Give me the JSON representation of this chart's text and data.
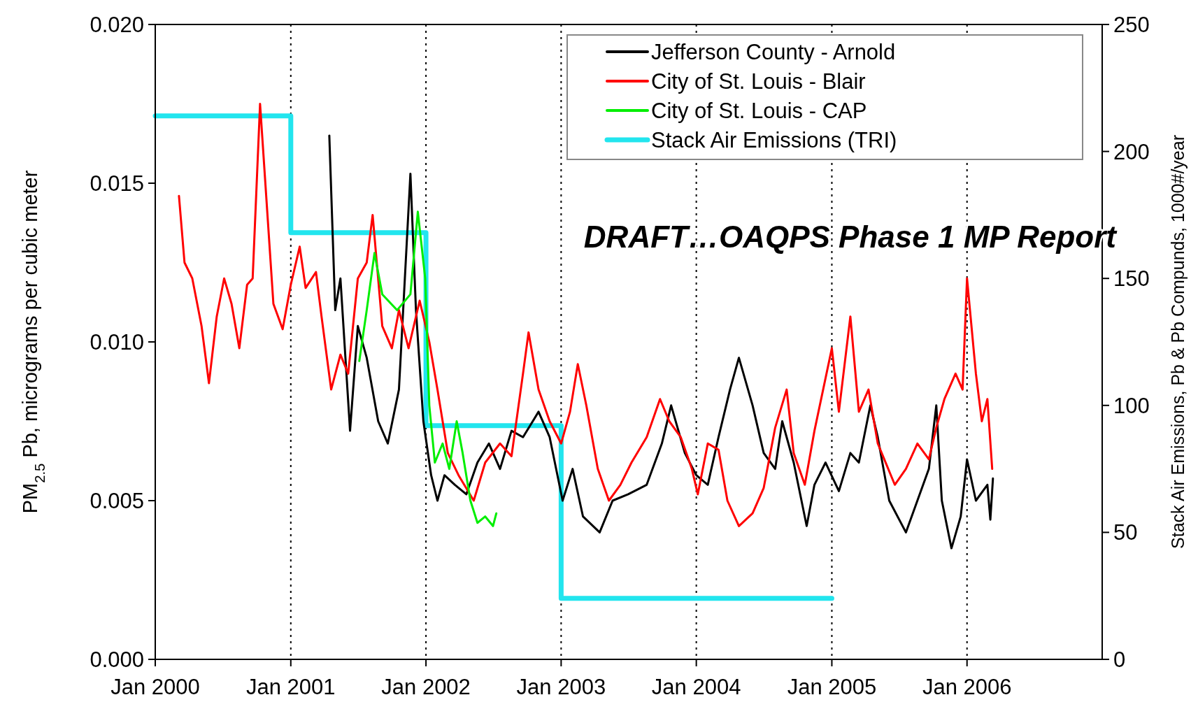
{
  "chart_data": {
    "type": "line",
    "ylabel": "PM$_{2.5}$ Pb, micrograms per cubic meter",
    "y2label": "Stack Air Emissions, Pb & Pb Compunds, 1000#/year",
    "annotations": [
      "DRAFT…OAQPS Phase 1 MP Report"
    ],
    "xlim": [
      "2000-01",
      "2007-01"
    ],
    "xticks": [
      {
        "value": "2000-01",
        "label": "Jan 2000"
      },
      {
        "value": "2001-01",
        "label": "Jan 2001"
      },
      {
        "value": "2002-01",
        "label": "Jan 2002"
      },
      {
        "value": "2003-01",
        "label": "Jan 2003"
      },
      {
        "value": "2004-01",
        "label": "Jan 2004"
      },
      {
        "value": "2005-01",
        "label": "Jan 2005"
      },
      {
        "value": "2006-01",
        "label": "Jan 2006"
      }
    ],
    "ylim": [
      0,
      0.02
    ],
    "yticks": [
      {
        "value": 0,
        "label": "0.000"
      },
      {
        "value": 0.005,
        "label": "0.005"
      },
      {
        "value": 0.01,
        "label": "0.010"
      },
      {
        "value": 0.015,
        "label": "0.015"
      },
      {
        "value": 0.02,
        "label": "0.020"
      }
    ],
    "y2lim": [
      0,
      250
    ],
    "y2ticks": [
      0,
      50,
      100,
      150,
      200,
      250
    ],
    "grid": "x",
    "line_style": "solid",
    "legend": "top right",
    "series": [
      {
        "name": "Jefferson County - Arnold",
        "color": "#000000",
        "x": [
          "2001-04-15",
          "2001-05-01",
          "2001-05-15",
          "2001-06-10",
          "2001-07-01",
          "2001-07-25",
          "2001-08-25",
          "2001-09-20",
          "2001-10-20",
          "2001-11-05",
          "2001-11-20",
          "2001-12-05",
          "2001-12-25",
          "2002-01-15",
          "2002-02-01",
          "2002-02-20",
          "2002-03-20",
          "2002-04-20",
          "2002-05-20",
          "2002-06-20",
          "2002-07-20",
          "2002-08-20",
          "2002-09-20",
          "2002-11-01",
          "2002-12-01",
          "2003-01-05",
          "2003-02-01",
          "2003-03-01",
          "2003-04-15",
          "2003-05-20",
          "2003-07-01",
          "2003-08-20",
          "2003-09-30",
          "2003-10-25",
          "2003-12-01",
          "2004-01-01",
          "2004-02-01",
          "2004-03-01",
          "2004-04-01",
          "2004-04-25",
          "2004-06-01",
          "2004-07-01",
          "2004-08-01",
          "2004-08-20",
          "2004-09-20",
          "2004-10-25",
          "2004-11-15",
          "2004-12-15",
          "2005-01-20",
          "2005-02-20",
          "2005-03-15",
          "2005-04-15",
          "2005-05-05",
          "2005-06-05",
          "2005-07-20",
          "2005-08-20",
          "2005-09-20",
          "2005-10-10",
          "2005-10-25",
          "2005-11-20",
          "2005-12-15",
          "2006-01-01",
          "2006-01-25",
          "2006-02-25",
          "2006-03-05",
          "2006-03-12"
        ],
        "values": [
          0.0165,
          0.011,
          0.012,
          0.0072,
          0.0105,
          0.0095,
          0.0075,
          0.0068,
          0.0085,
          0.012,
          0.0153,
          0.011,
          0.0075,
          0.0058,
          0.005,
          0.0058,
          0.0055,
          0.0052,
          0.0062,
          0.0068,
          0.006,
          0.0072,
          0.007,
          0.0078,
          0.007,
          0.005,
          0.006,
          0.0045,
          0.004,
          0.005,
          0.0052,
          0.0055,
          0.0068,
          0.008,
          0.0065,
          0.0058,
          0.0055,
          0.007,
          0.0085,
          0.0095,
          0.008,
          0.0065,
          0.006,
          0.0075,
          0.0062,
          0.0042,
          0.0055,
          0.0062,
          0.0053,
          0.0065,
          0.0062,
          0.008,
          0.007,
          0.005,
          0.004,
          0.005,
          0.006,
          0.008,
          0.005,
          0.0035,
          0.0045,
          0.0063,
          0.005,
          0.0055,
          0.0044,
          0.0057
        ]
      },
      {
        "name": "City of St. Louis - Blair",
        "color": "#ff0000",
        "x": [
          "2000-03-05",
          "2000-03-20",
          "2000-04-10",
          "2000-05-05",
          "2000-05-25",
          "2000-06-15",
          "2000-07-05",
          "2000-07-25",
          "2000-08-15",
          "2000-09-05",
          "2000-09-20",
          "2000-10-10",
          "2000-10-30",
          "2000-11-15",
          "2000-12-10",
          "2001-01-01",
          "2001-01-25",
          "2001-02-10",
          "2001-03-10",
          "2001-03-25",
          "2001-04-20",
          "2001-05-15",
          "2001-06-05",
          "2001-07-01",
          "2001-07-25",
          "2001-08-10",
          "2001-09-05",
          "2001-10-01",
          "2001-10-20",
          "2001-11-15",
          "2001-12-15",
          "2002-01-10",
          "2002-02-01",
          "2002-03-01",
          "2002-03-30",
          "2002-05-10",
          "2002-06-10",
          "2002-07-20",
          "2002-08-20",
          "2002-09-20",
          "2002-10-05",
          "2002-11-01",
          "2002-12-01",
          "2003-01-01",
          "2003-01-25",
          "2003-02-15",
          "2003-03-10",
          "2003-04-10",
          "2003-05-10",
          "2003-06-10",
          "2003-07-10",
          "2003-08-20",
          "2003-09-25",
          "2003-10-20",
          "2003-11-20",
          "2003-12-20",
          "2004-01-05",
          "2004-02-01",
          "2004-03-01",
          "2004-03-25",
          "2004-04-25",
          "2004-06-01",
          "2004-07-01",
          "2004-08-01",
          "2004-09-01",
          "2004-09-20",
          "2004-10-20",
          "2004-11-15",
          "2005-01-01",
          "2005-01-20",
          "2005-02-20",
          "2005-03-15",
          "2005-04-10",
          "2005-05-05",
          "2005-06-20",
          "2005-07-20",
          "2005-08-20",
          "2005-09-20",
          "2005-10-10",
          "2005-11-01",
          "2005-12-01",
          "2005-12-20",
          "2006-01-01",
          "2006-01-25",
          "2006-02-10",
          "2006-02-25",
          "2006-03-10"
        ],
        "values": [
          0.0146,
          0.0125,
          0.012,
          0.0105,
          0.0087,
          0.0108,
          0.012,
          0.0112,
          0.0098,
          0.0118,
          0.012,
          0.0175,
          0.014,
          0.0112,
          0.0104,
          0.0118,
          0.013,
          0.0117,
          0.0122,
          0.0108,
          0.0085,
          0.0096,
          0.009,
          0.012,
          0.0125,
          0.014,
          0.0105,
          0.0098,
          0.011,
          0.0098,
          0.0113,
          0.01,
          0.0085,
          0.0065,
          0.0058,
          0.005,
          0.0062,
          0.0068,
          0.0064,
          0.009,
          0.0103,
          0.0085,
          0.0075,
          0.0068,
          0.0078,
          0.0093,
          0.008,
          0.006,
          0.005,
          0.0055,
          0.0062,
          0.007,
          0.0082,
          0.0075,
          0.007,
          0.006,
          0.0052,
          0.0068,
          0.0066,
          0.005,
          0.0042,
          0.0046,
          0.0054,
          0.0073,
          0.0085,
          0.0065,
          0.0055,
          0.0072,
          0.0098,
          0.0078,
          0.0108,
          0.0078,
          0.0085,
          0.0068,
          0.0055,
          0.006,
          0.0068,
          0.0063,
          0.0073,
          0.0082,
          0.009,
          0.0085,
          0.012,
          0.009,
          0.0075,
          0.0082,
          0.006
        ]
      },
      {
        "name": "City of St. Louis - CAP",
        "color": "#00ee00",
        "x": [
          "2001-07-05",
          "2001-07-25",
          "2001-08-15",
          "2001-09-05",
          "2001-10-15",
          "2001-11-20",
          "2001-12-10",
          "2001-12-30",
          "2002-01-10",
          "2002-01-25",
          "2002-02-15",
          "2002-03-05",
          "2002-03-25",
          "2002-04-10",
          "2002-05-01",
          "2002-05-20",
          "2002-06-10",
          "2002-07-01",
          "2002-07-10"
        ],
        "values": [
          0.0094,
          0.011,
          0.0128,
          0.0115,
          0.011,
          0.0115,
          0.0141,
          0.012,
          0.008,
          0.0062,
          0.0068,
          0.006,
          0.0075,
          0.0065,
          0.005,
          0.0043,
          0.0045,
          0.0042,
          0.0046
        ]
      },
      {
        "name": "Stack Air Emissions (TRI)",
        "color": "#22e5ee",
        "type": "step",
        "axis": "y2",
        "x": [
          "2000-01",
          "2001-01",
          "2002-01",
          "2003-01",
          "2005-01"
        ],
        "values": [
          214,
          168,
          92,
          24,
          24
        ]
      }
    ]
  }
}
